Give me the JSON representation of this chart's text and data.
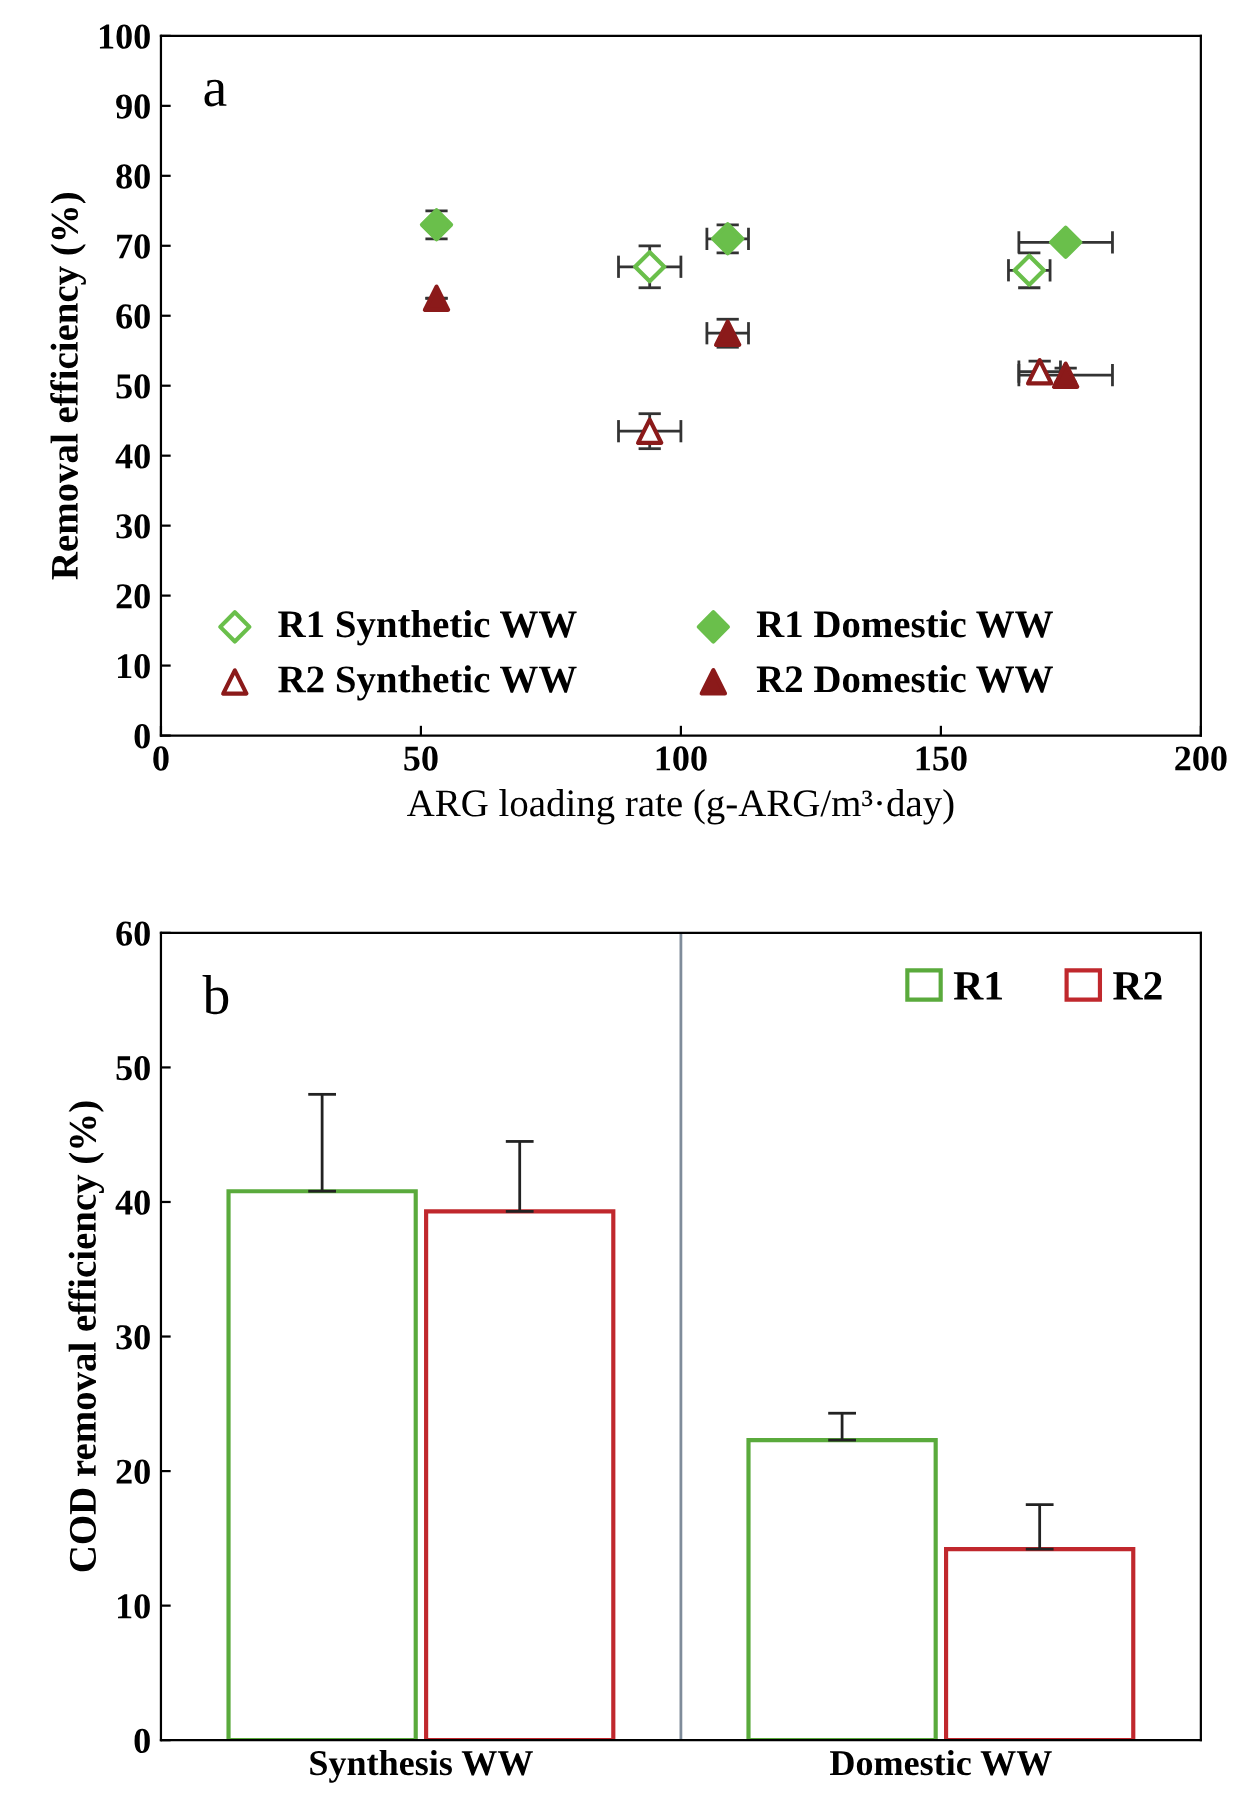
{
  "chart_data": [
    {
      "type": "scatter",
      "xlabel": "ARG loading rate (g-ARG/m³·day)",
      "ylabel": "Removal efficiency (%)",
      "annotations": [
        "a"
      ],
      "xlim": [
        0,
        200
      ],
      "xticks": [
        0,
        50,
        100,
        150,
        200
      ],
      "ylim": [
        0,
        100
      ],
      "yticks": [
        0,
        10,
        20,
        30,
        40,
        50,
        60,
        70,
        80,
        90,
        100
      ],
      "grid": false,
      "legend": "bottom left",
      "series": [
        {
          "name": "R1 Synthetic WW",
          "color": "#6abf4b",
          "marker": "diamond",
          "x": [
            94,
            167
          ],
          "values": [
            67,
            66.5
          ],
          "errors": [
            3,
            2.5
          ],
          "xerrors": [
            6,
            4
          ]
        },
        {
          "name": "R1 Domestic WW",
          "color": "#6abf4b",
          "marker": "diamond",
          "x": [
            53,
            109,
            174
          ],
          "values": [
            73,
            71,
            70.5
          ],
          "errors": [
            2,
            2,
            null
          ],
          "xerrors": [
            null,
            4,
            9
          ]
        },
        {
          "name": "R2 Synthetic WW",
          "color": "#8b1a1a",
          "marker": "triangle",
          "x": [
            94,
            169
          ],
          "values": [
            43.5,
            52
          ],
          "errors": [
            2.5,
            1.5
          ],
          "xerrors": [
            6,
            4
          ]
        },
        {
          "name": "R2 Domestic WW",
          "color": "#8b1a1a",
          "marker": "triangle",
          "x": [
            53,
            109,
            174
          ],
          "values": [
            62.5,
            57.5,
            51.5
          ],
          "errors": [
            null,
            2,
            1
          ],
          "xerrors": [
            null,
            4,
            9
          ]
        }
      ]
    },
    {
      "type": "bar",
      "ylabel": "COD removal efficiency (%)",
      "annotations": [
        "b"
      ],
      "categories": [
        "Synthesis WW",
        "Domestic WW"
      ],
      "ylim": [
        0,
        60
      ],
      "yticks": [
        0,
        10,
        20,
        30,
        40,
        50,
        60
      ],
      "grid": false,
      "legend": "top right",
      "series": [
        {
          "name": "R1",
          "color": "#5aaa3c",
          "values": [
            40.8,
            22.3
          ],
          "errors": [
            7.2,
            2.0
          ]
        },
        {
          "name": "R2",
          "color": "#c0282d",
          "values": [
            39.3,
            14.2
          ],
          "errors": [
            5.2,
            3.3
          ]
        }
      ]
    }
  ]
}
